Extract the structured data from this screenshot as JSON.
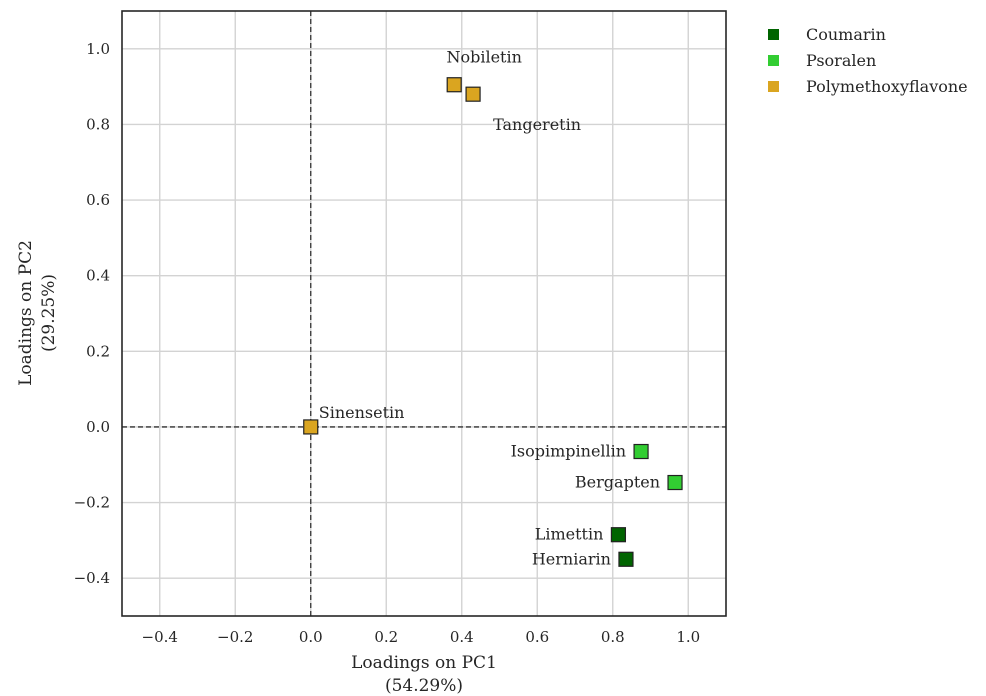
{
  "chart_data": {
    "type": "scatter",
    "title": "",
    "xlabel": "Loadings on PC1",
    "xlabel_sub": "(54.29%)",
    "ylabel": "Loadings on PC2",
    "ylabel_sub": "(29.25%)",
    "xlim": [
      -0.5,
      1.1
    ],
    "ylim": [
      -0.5,
      1.1
    ],
    "xticks": [
      -0.4,
      -0.2,
      0.0,
      0.2,
      0.4,
      0.6,
      0.8,
      1.0
    ],
    "yticks": [
      -0.4,
      -0.2,
      0.0,
      0.2,
      0.4,
      0.6,
      0.8,
      1.0
    ],
    "xtick_labels": [
      "−0.4",
      "−0.2",
      "0.0",
      "0.2",
      "0.4",
      "0.6",
      "0.8",
      "1.0"
    ],
    "ytick_labels": [
      "−0.4",
      "−0.2",
      "0.0",
      "0.2",
      "0.4",
      "0.6",
      "0.8",
      "1.0"
    ],
    "grid": true,
    "reference_lines": {
      "x": 0,
      "y": 0,
      "style": "dashed"
    },
    "legend_position": "outside-right-top",
    "series": [
      {
        "name": "Coumarin",
        "color": "#006400",
        "points": [
          {
            "label": "Limettin",
            "x": 0.815,
            "y": -0.285,
            "label_side": "left"
          },
          {
            "label": "Herniarin",
            "x": 0.835,
            "y": -0.35,
            "label_side": "left"
          }
        ]
      },
      {
        "name": "Psoralen",
        "color": "#32CD32",
        "points": [
          {
            "label": "Isopimpinellin",
            "x": 0.875,
            "y": -0.065,
            "label_side": "left"
          },
          {
            "label": "Bergapten",
            "x": 0.965,
            "y": -0.147,
            "label_side": "left"
          }
        ]
      },
      {
        "name": "Polymethoxyflavone",
        "color": "#DAA520",
        "points": [
          {
            "label": "Nobiletin",
            "x": 0.38,
            "y": 0.905,
            "label_side": "above"
          },
          {
            "label": "Tangeretin",
            "x": 0.43,
            "y": 0.88,
            "label_side": "below-right"
          },
          {
            "label": "Sinensetin",
            "x": 0.0,
            "y": 0.0,
            "label_side": "above-right"
          }
        ]
      }
    ]
  }
}
